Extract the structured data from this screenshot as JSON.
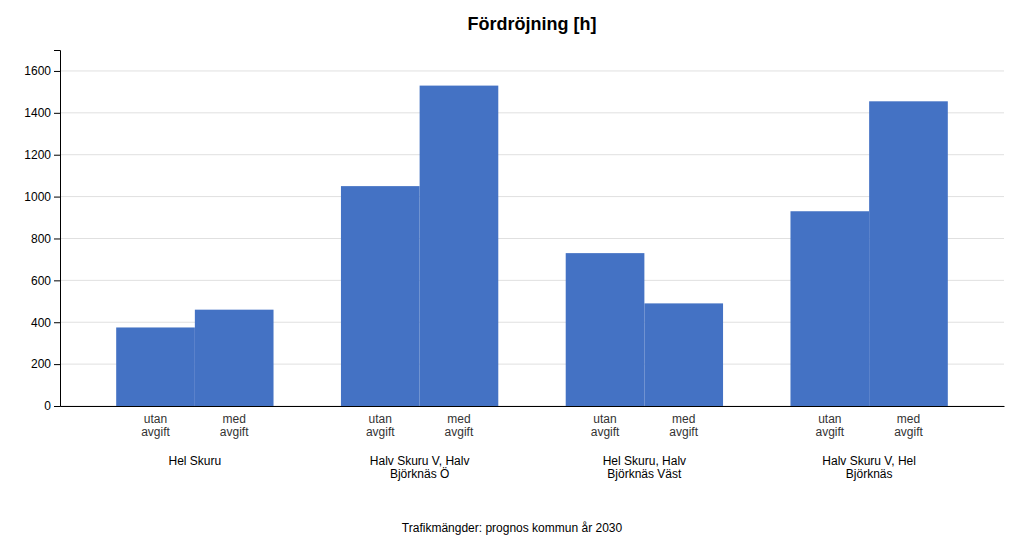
{
  "chart_data": {
    "type": "bar",
    "title": "Fördröjning [h]",
    "xlabel": "Trafikmängder: prognos kommun år 2030",
    "categories": [
      "Hel Skuru",
      "Halv Skuru V, Halv\nBjörknäs Ö",
      "Hel Skuru, Halv\nBjörknäs Väst",
      "Halv Skuru V, Hel\nBjörknäs"
    ],
    "series": [
      {
        "name": "utan\navgift",
        "color": "#4472C4",
        "values": [
          375,
          1050,
          730,
          930
        ]
      },
      {
        "name": "med\navgift",
        "color": "#4472C4",
        "values": [
          460,
          1530,
          490,
          1455
        ]
      }
    ],
    "ylim": [
      0,
      1700
    ],
    "yticks": [
      0,
      200,
      400,
      600,
      800,
      1000,
      1200,
      1400,
      1600
    ],
    "grid": true
  }
}
